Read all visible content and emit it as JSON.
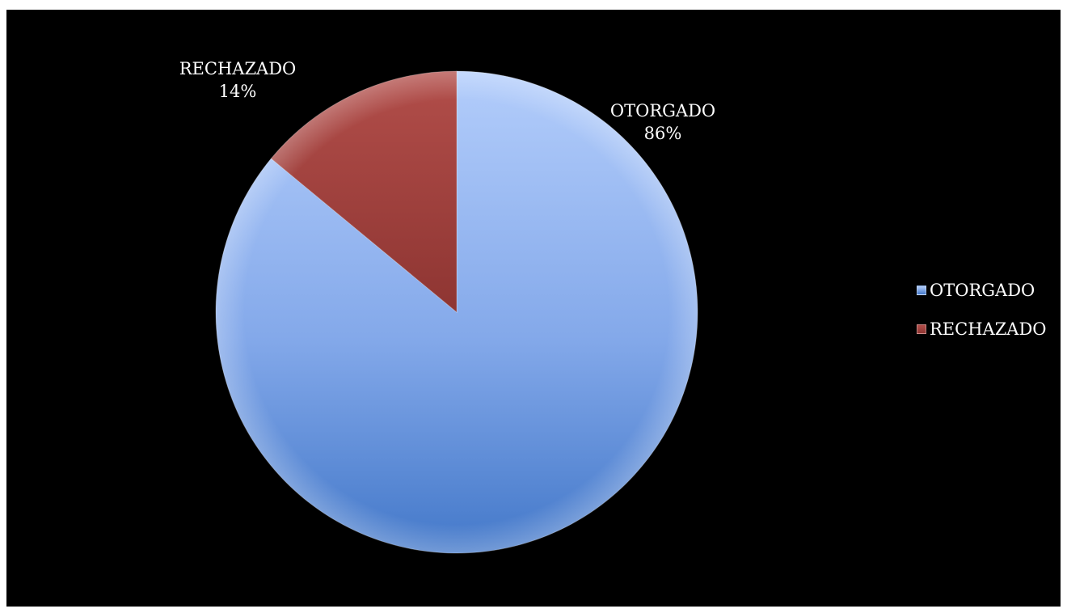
{
  "chart_data": {
    "type": "pie",
    "title": "",
    "slices": [
      {
        "label": "OTORGADO",
        "value": 86,
        "value_label": "86%",
        "color": "#6f9ae0"
      },
      {
        "label": "RECHAZADO",
        "value": 14,
        "value_label": "14%",
        "color": "#a04441"
      }
    ],
    "legend": {
      "position": "right",
      "entries": [
        "OTORGADO",
        "RECHAZADO"
      ]
    },
    "background": "#000000"
  }
}
